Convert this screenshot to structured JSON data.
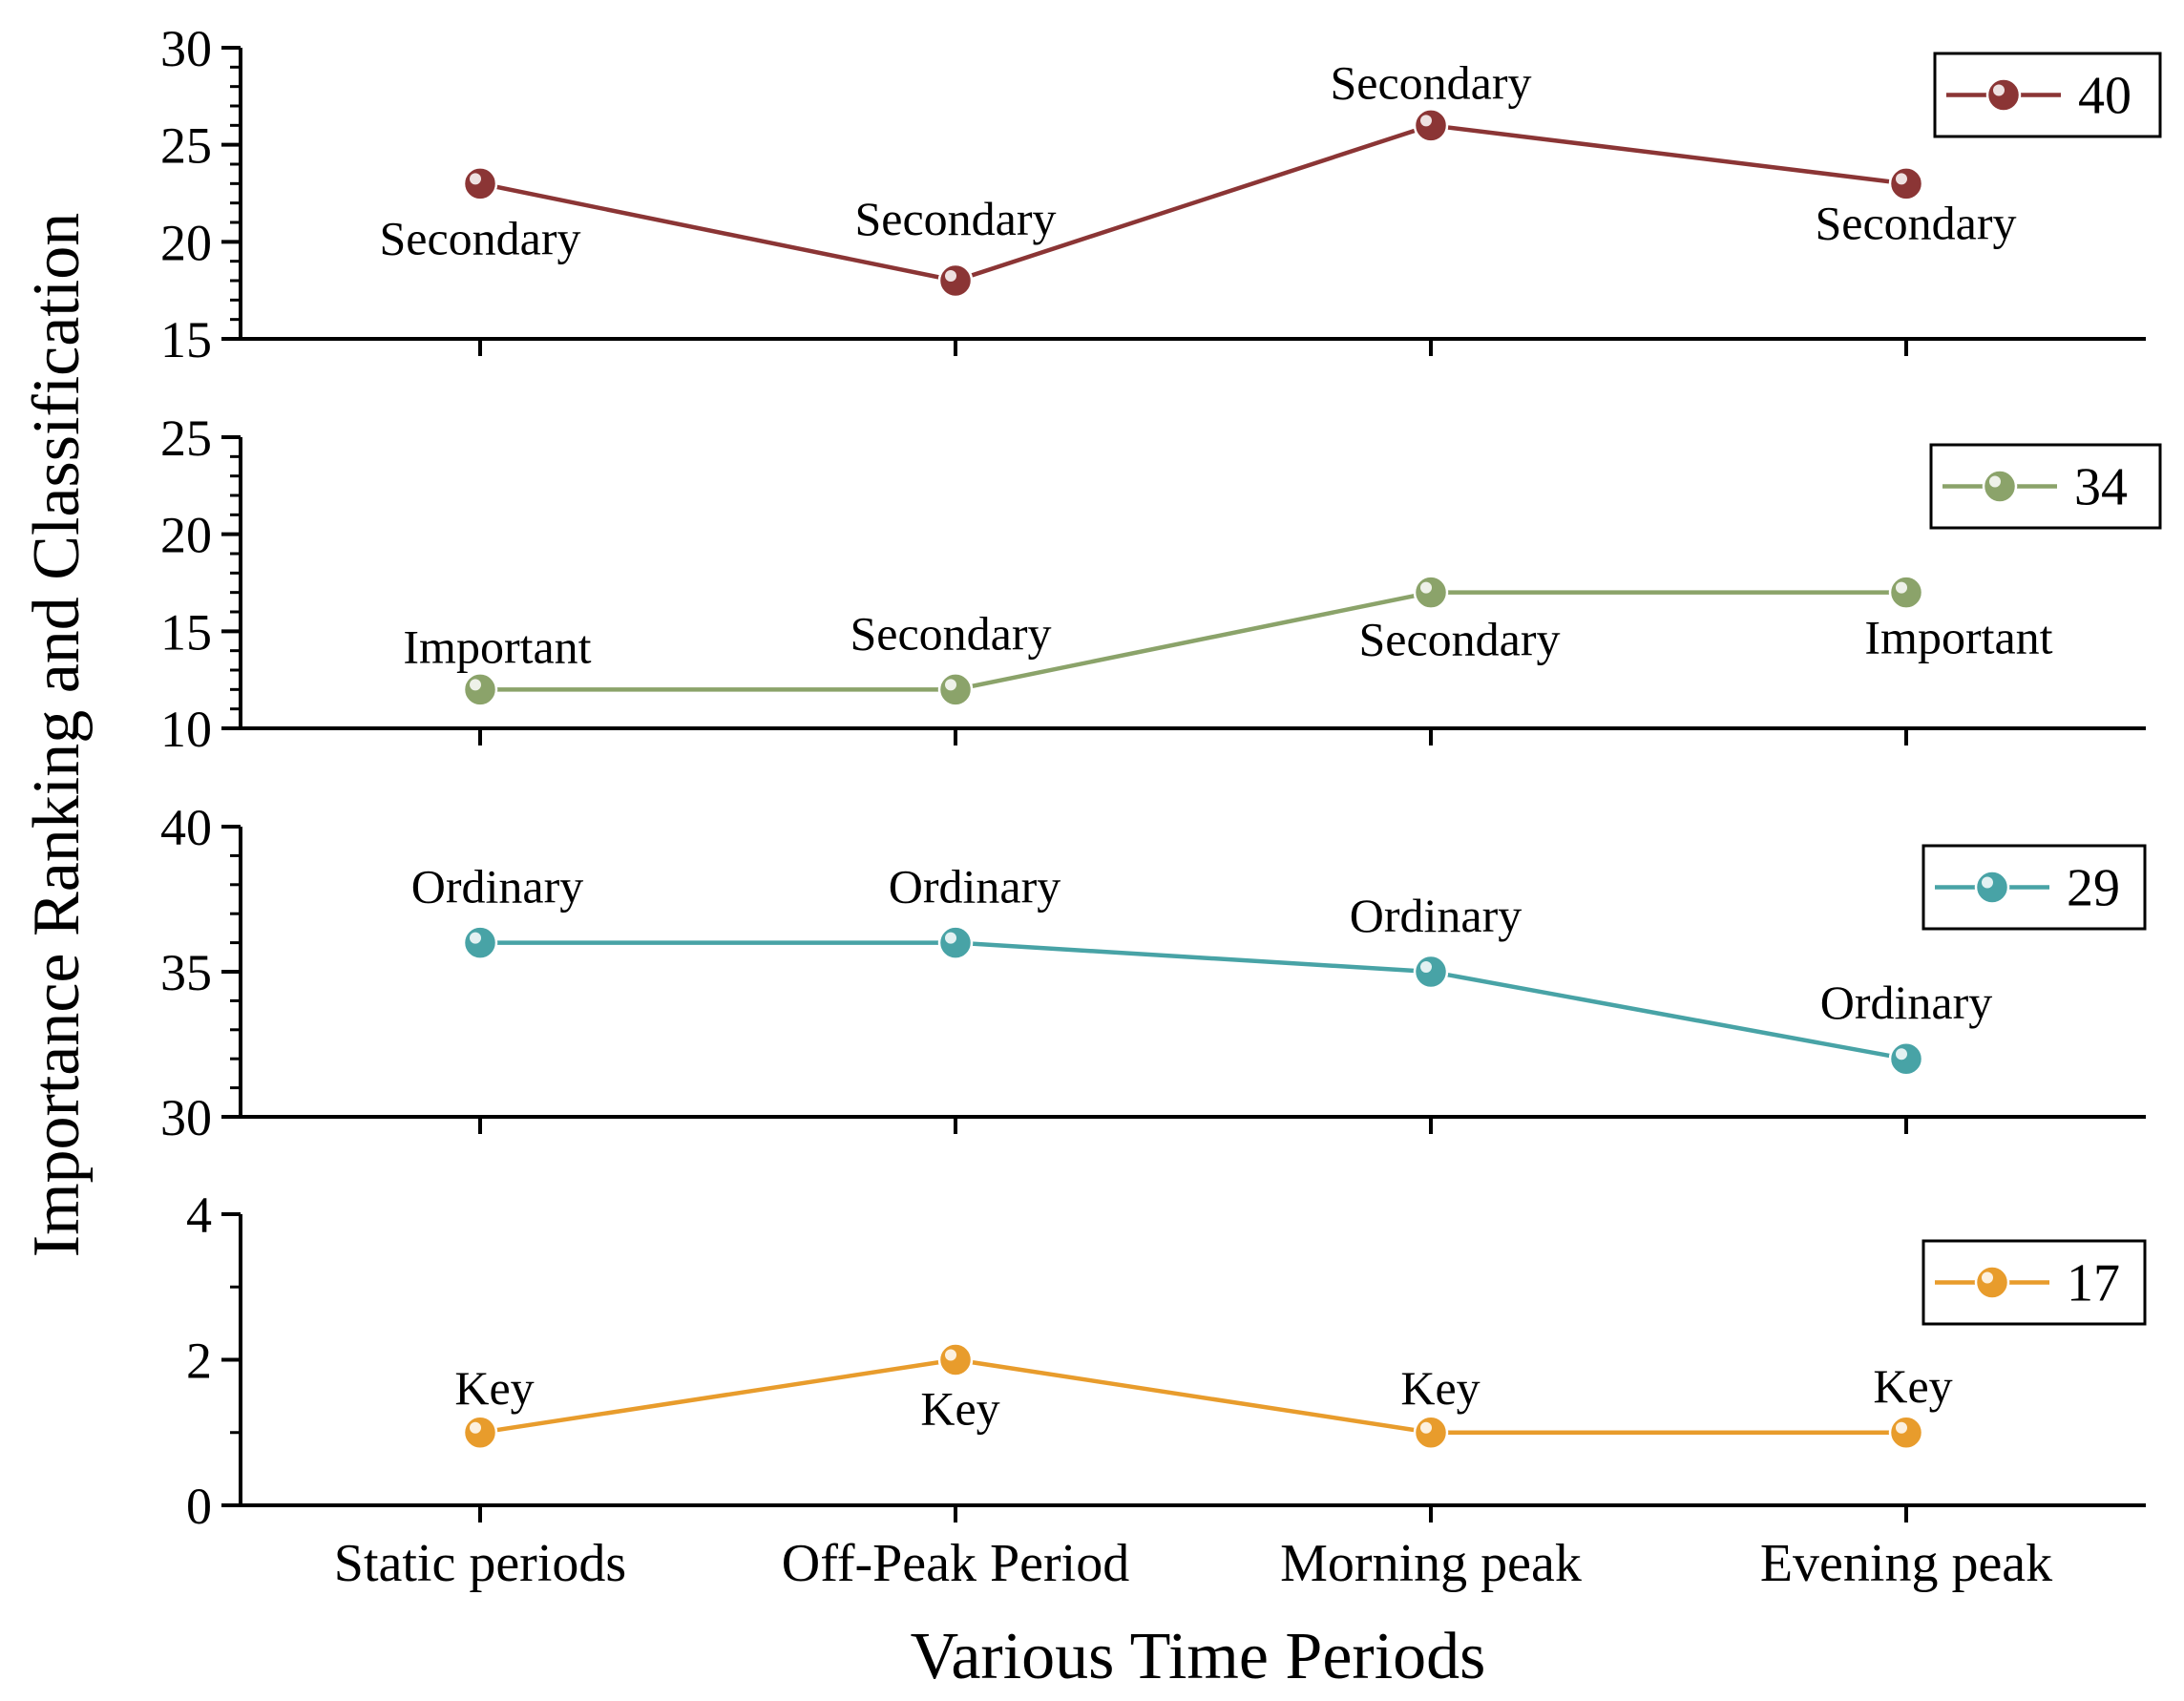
{
  "chart_data": {
    "type": "line",
    "xlabel": "Various Time Periods",
    "ylabel": "Importance Ranking and Classification",
    "categories": [
      "Static periods",
      "Off-Peak Period",
      "Morning peak",
      "Evening peak"
    ],
    "panels": [
      {
        "legend": "40",
        "color": "#8B3535",
        "ylim": [
          15,
          30
        ],
        "yticks": [
          15,
          20,
          25,
          30
        ],
        "values": [
          23,
          18,
          26,
          23
        ],
        "labels": [
          "Secondary",
          "Secondary",
          "Secondary",
          "Secondary"
        ]
      },
      {
        "legend": "34",
        "color": "#8BA36A",
        "ylim": [
          10,
          25
        ],
        "yticks": [
          10,
          15,
          20,
          25
        ],
        "values": [
          12,
          12,
          17,
          17
        ],
        "labels": [
          "Important",
          "Secondary",
          "Secondary",
          "Important"
        ]
      },
      {
        "legend": "29",
        "color": "#48A3A6",
        "ylim": [
          30,
          40
        ],
        "yticks": [
          30,
          35,
          40
        ],
        "values": [
          36,
          36,
          35,
          32
        ],
        "labels": [
          "Ordinary",
          "Ordinary",
          "Ordinary",
          "Ordinary"
        ]
      },
      {
        "legend": "17",
        "color": "#E89C2C",
        "ylim": [
          0,
          4
        ],
        "yticks": [
          0,
          2,
          4
        ],
        "values": [
          1,
          2,
          1,
          1
        ],
        "labels": [
          "Key",
          "Key",
          "Key",
          "Key"
        ]
      }
    ]
  }
}
